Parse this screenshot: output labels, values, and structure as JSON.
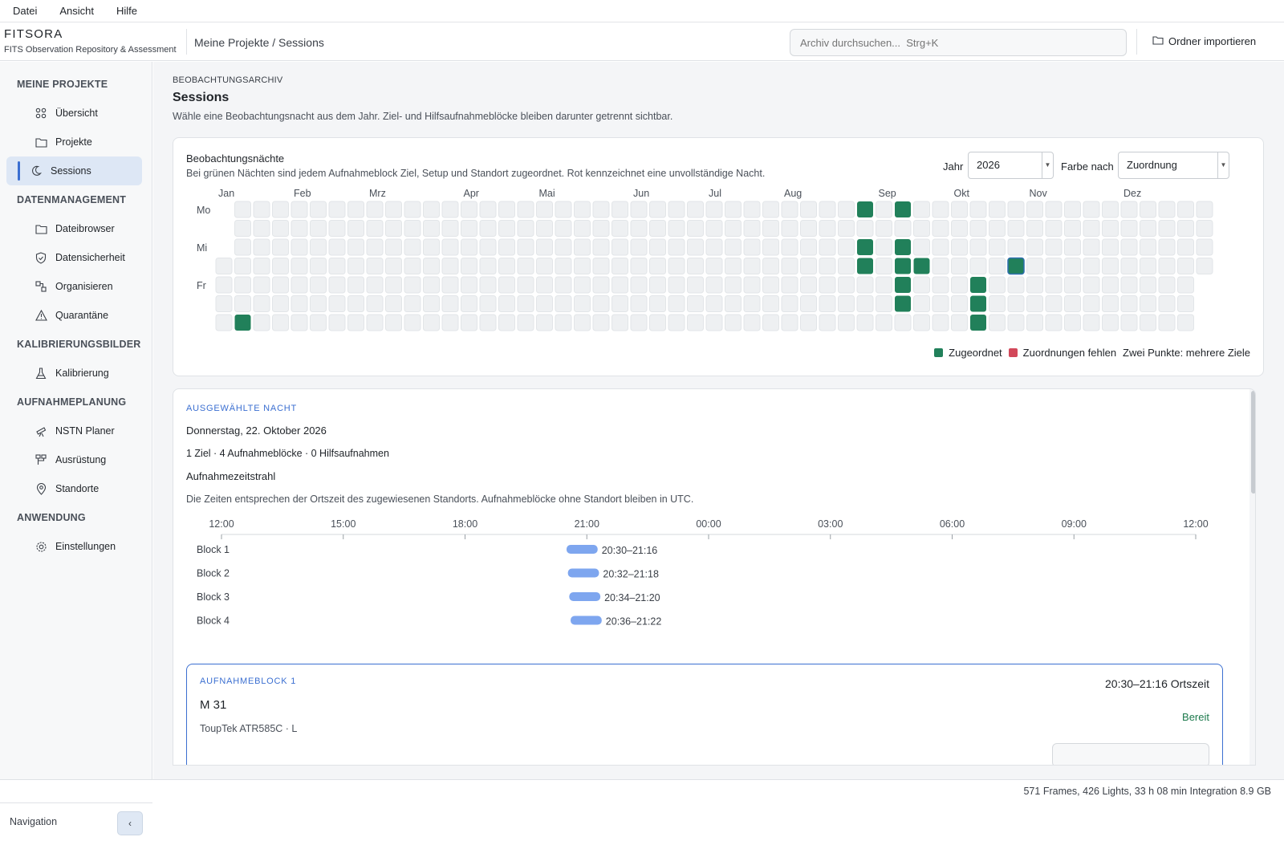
{
  "menu": [
    "Datei",
    "Ansicht",
    "Hilfe"
  ],
  "app": {
    "name": "FITSORA",
    "subtitle": "FITS Observation Repository & Assessment"
  },
  "breadcrumb": "Meine Projekte / Sessions",
  "search": {
    "placeholder": "Archiv durchsuchen...  Strg+K"
  },
  "import_button": "Ordner importieren",
  "sidebar": {
    "sections": [
      {
        "title": "MEINE PROJEKTE",
        "items": [
          {
            "label": "Übersicht",
            "icon": "grid-icon"
          },
          {
            "label": "Projekte",
            "icon": "folder-icon"
          },
          {
            "label": "Sessions",
            "icon": "moon-icon",
            "active": true
          }
        ]
      },
      {
        "title": "DATENMANAGEMENT",
        "items": [
          {
            "label": "Dateibrowser",
            "icon": "folder-icon"
          },
          {
            "label": "Datensicherheit",
            "icon": "shield-icon"
          },
          {
            "label": "Organisieren",
            "icon": "organize-icon"
          },
          {
            "label": "Quarantäne",
            "icon": "warning-icon"
          }
        ]
      },
      {
        "title": "KALIBRIERUNGSBILDER",
        "items": [
          {
            "label": "Kalibrierung",
            "icon": "flask-icon"
          }
        ]
      },
      {
        "title": "AUFNAHMEPLANUNG",
        "items": [
          {
            "label": "NSTN Planer",
            "icon": "telescope-icon"
          },
          {
            "label": "Ausrüstung",
            "icon": "equipment-icon"
          },
          {
            "label": "Standorte",
            "icon": "location-pin-icon"
          }
        ]
      },
      {
        "title": "ANWENDUNG",
        "items": [
          {
            "label": "Einstellungen",
            "icon": "gear-icon"
          }
        ]
      }
    ],
    "footer_label": "Navigation",
    "collapse_glyph": "‹"
  },
  "page": {
    "eyebrow": "BEOBACHTUNGSARCHIV",
    "title": "Sessions",
    "description": "Wähle eine Beobachtungsnacht aus dem Jahr. Ziel- und Hilfsaufnahmeblöcke bleiben darunter getrennt sichtbar."
  },
  "calendar": {
    "title": "Beobachtungsnächte",
    "subtitle": "Bei grünen Nächten sind jedem Aufnahmeblock Ziel, Setup und Standort zugeordnet. Rot kennzeichnet eine unvollständige Nacht.",
    "year_label": "Jahr",
    "year_value": "2026",
    "color_label": "Farbe nach",
    "color_value": "Zuordnung",
    "months": [
      "Jan",
      "Feb",
      "Mrz",
      "Apr",
      "Mai",
      "Jun",
      "Jul",
      "Aug",
      "Sep",
      "Okt",
      "Nov",
      "Dez"
    ],
    "weekday_labels": [
      "Mo",
      "",
      "Mi",
      "",
      "Fr",
      "",
      ""
    ],
    "year": 2026,
    "assigned_nights": [
      "2026-01-11",
      "2026-08-24",
      "2026-08-26",
      "2026-08-27",
      "2026-09-07",
      "2026-09-09",
      "2026-09-10",
      "2026-09-11",
      "2026-09-12",
      "2026-09-17",
      "2026-10-09",
      "2026-10-10",
      "2026-10-11",
      "2026-10-22"
    ],
    "incomplete_nights": [],
    "selected_night": "2026-10-22",
    "legend": {
      "assigned": "Zugeordnet",
      "missing": "Zuordnungen fehlen",
      "multi": "Zwei Punkte: mehrere Ziele"
    },
    "colors": {
      "assigned": "#21805a",
      "missing": "#d2485a",
      "empty": "#eef0f2",
      "selected_border": "#2f6fb0"
    }
  },
  "night": {
    "eyebrow": "AUSGEWÄHLTE NACHT",
    "date": "Donnerstag, 22. Oktober 2026",
    "stats": "1 Ziel · 4 Aufnahmeblöcke · 0 Hilfsaufnahmen",
    "timeline_title": "Aufnahmezeitstrahl",
    "timeline_desc": "Die Zeiten entsprechen der Ortszeit des zugewiesenen Standorts. Aufnahmeblöcke ohne Standort bleiben in UTC.",
    "ticks": [
      "12:00",
      "15:00",
      "18:00",
      "21:00",
      "00:00",
      "03:00",
      "06:00",
      "09:00",
      "12:00"
    ],
    "blocks": [
      {
        "label": "Block 1",
        "start": "20:30",
        "end": "21:16",
        "range": "20:30–21:16"
      },
      {
        "label": "Block 2",
        "start": "20:32",
        "end": "21:18",
        "range": "20:32–21:18"
      },
      {
        "label": "Block 3",
        "start": "20:34",
        "end": "21:20",
        "range": "20:34–21:20"
      },
      {
        "label": "Block 4",
        "start": "20:36",
        "end": "21:22",
        "range": "20:36–21:22"
      }
    ],
    "bar_color": "#7ea6ef"
  },
  "block_card": {
    "eyebrow": "AUFNAHMEBLOCK 1",
    "target": "M 31",
    "setup": "ToupTek ATR585C · L",
    "time": "20:30–21:16 Ortszeit",
    "status": "Bereit"
  },
  "statusbar": "571 Frames, 426 Lights, 33 h 08 min Integration  8.9 GB"
}
